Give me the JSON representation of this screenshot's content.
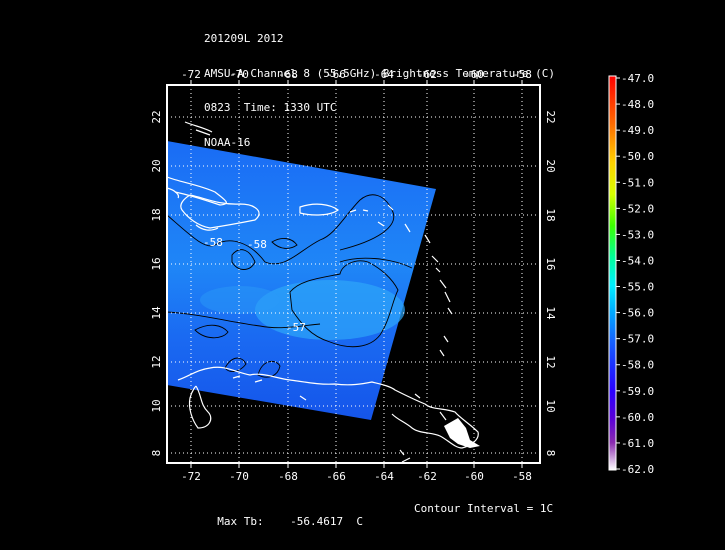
{
  "title": {
    "line1": "201209L 2012",
    "line2": "AMSU-A Channel 8 (55.5GHz) Brightness Temperature (C)",
    "line3": "0823  Time: 1330 UTC",
    "line4": "NOAA-16"
  },
  "axes": {
    "lon_ticks": [
      "-72",
      "-70",
      "-68",
      "-66",
      "-64",
      "-62",
      "-60",
      "-58"
    ],
    "lat_ticks": [
      "8",
      "10",
      "12",
      "14",
      "16",
      "18",
      "20",
      "22"
    ]
  },
  "contour_labels": [
    "-58",
    "-58",
    "-57"
  ],
  "colorbar": {
    "labels": [
      "-47.0",
      "-48.0",
      "-49.0",
      "-50.0",
      "-51.0",
      "-52.0",
      "-53.0",
      "-54.0",
      "-55.0",
      "-56.0",
      "-57.0",
      "-58.0",
      "-59.0",
      "-60.0",
      "-61.0",
      "-62.0"
    ]
  },
  "footer": {
    "max_label": "Max Tb:",
    "max_value": "-56.4617",
    "max_unit": "C",
    "contour_interval": "Contour Interval = 1C"
  }
}
